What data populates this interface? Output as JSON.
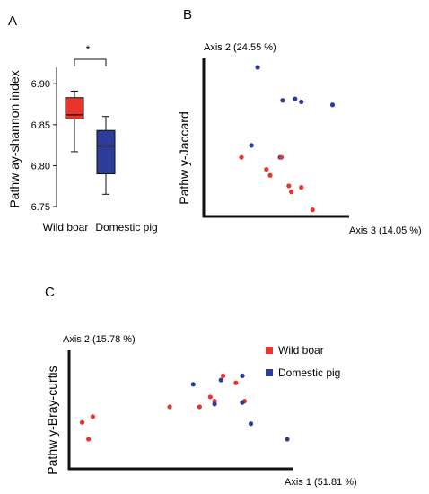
{
  "colors": {
    "wild": "#e8342b",
    "domestic": "#2b3c99",
    "axis": "#111111"
  },
  "panels": {
    "a_label": "A",
    "b_label": "B",
    "c_label": "C"
  },
  "chart_data": [
    {
      "type": "boxplot",
      "ylabel": "Pathw ay-shannon index",
      "ylim": [
        6.75,
        6.92
      ],
      "yticks": [
        "6.75",
        "6.80",
        "6.85",
        "6.90"
      ],
      "significance": "*",
      "categories": [
        "Wild boar",
        "Domestic pig"
      ],
      "series": [
        {
          "category": "Wild boar",
          "color": "#e8342b",
          "min": 6.817,
          "q1": 6.857,
          "median": 6.862,
          "q3": 6.883,
          "max": 6.891
        },
        {
          "category": "Domestic pig",
          "color": "#2b3c99",
          "min": 6.765,
          "q1": 6.79,
          "median": 6.824,
          "q3": 6.843,
          "max": 6.86
        }
      ]
    },
    {
      "type": "scatter",
      "ylabel": "Pathw y-Jaccard",
      "yaxis_title": "Axis 2 (24.55 %)",
      "xaxis_title": "Axis 3 (14.05 %)",
      "xlim": [
        0,
        10
      ],
      "ylim": [
        0,
        10
      ],
      "series": [
        {
          "name": "Domestic pig",
          "color": "#2b3c99",
          "points": [
            [
              3.1,
              9.7
            ],
            [
              5.1,
              7.5
            ],
            [
              6.1,
              7.6
            ],
            [
              6.6,
              7.4
            ],
            [
              9.1,
              7.2
            ],
            [
              2.6,
              4.5
            ],
            [
              4.9,
              3.7
            ]
          ]
        },
        {
          "name": "Wild boar",
          "color": "#e8342b",
          "points": [
            [
              1.8,
              3.7
            ],
            [
              5.0,
              3.7
            ],
            [
              3.8,
              2.9
            ],
            [
              4.1,
              2.5
            ],
            [
              5.6,
              1.8
            ],
            [
              6.6,
              1.7
            ],
            [
              5.8,
              1.4
            ],
            [
              7.5,
              0.2
            ]
          ]
        }
      ]
    },
    {
      "type": "scatter",
      "ylabel": "Pathw y-Bray-curtis",
      "yaxis_title": "Axis 2 (15.78 %)",
      "xaxis_title": "Axis 1 (51.81 %)",
      "xlim": [
        0,
        10
      ],
      "ylim": [
        0,
        10
      ],
      "legend": {
        "placement": "top-right",
        "entries": [
          "Wild boar",
          "Domestic pig"
        ]
      },
      "series": [
        {
          "name": "Wild boar",
          "color": "#e8342b",
          "points": [
            [
              0.4,
              3.3
            ],
            [
              0.9,
              3.7
            ],
            [
              0.7,
              2.1
            ],
            [
              4.5,
              4.4
            ],
            [
              5.9,
              4.4
            ],
            [
              6.4,
              5.1
            ],
            [
              6.6,
              4.8
            ],
            [
              7.0,
              6.6
            ],
            [
              7.6,
              6.1
            ],
            [
              8.0,
              4.8
            ]
          ]
        },
        {
          "name": "Domestic pig",
          "color": "#2b3c99",
          "points": [
            [
              5.6,
              6.0
            ],
            [
              6.9,
              6.3
            ],
            [
              7.9,
              6.6
            ],
            [
              6.6,
              4.6
            ],
            [
              7.9,
              4.7
            ],
            [
              8.3,
              3.2
            ],
            [
              10.0,
              2.1
            ]
          ]
        }
      ]
    }
  ]
}
